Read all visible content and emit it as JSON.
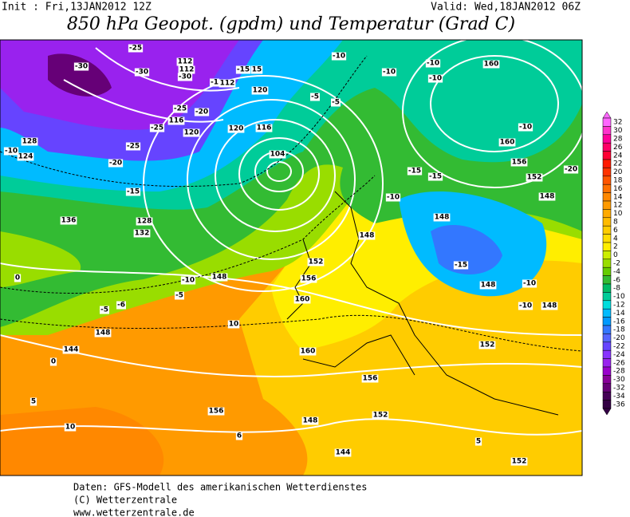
{
  "header": {
    "init": "Init : Fri,13JAN2012 12Z",
    "valid": "Valid: Wed,18JAN2012 06Z",
    "title": "850 hPa Geopot. (gpdm) und Temperatur (Grad C)"
  },
  "footer": {
    "line1": "Daten: GFS-Modell des amerikanischen Wetterdienstes",
    "line2": "(C) Wetterzentrale",
    "line3": "www.wetterzentrale.de"
  },
  "colorbar": {
    "labels": [
      32,
      30,
      28,
      26,
      24,
      22,
      20,
      18,
      16,
      14,
      12,
      10,
      8,
      6,
      4,
      2,
      0,
      -2,
      -4,
      -6,
      -8,
      -10,
      -12,
      -14,
      -16,
      -18,
      -20,
      -22,
      -24,
      -26,
      -28,
      -30,
      -32,
      -34,
      -36
    ],
    "colors": [
      "#ff66ff",
      "#ff33cc",
      "#ff0099",
      "#ff0066",
      "#ff0033",
      "#ff1a00",
      "#ff3300",
      "#ff5500",
      "#ff7000",
      "#ff8800",
      "#ff9a00",
      "#ffaa00",
      "#ffbb00",
      "#ffcc00",
      "#ffdd00",
      "#ffee00",
      "#ccee00",
      "#99dd00",
      "#66cc00",
      "#33bb33",
      "#00bb66",
      "#00cc99",
      "#00dddd",
      "#00bbff",
      "#0099ff",
      "#3377ff",
      "#5566ff",
      "#6644ff",
      "#8833ff",
      "#9922ee",
      "#9900cc",
      "#880099",
      "#660077",
      "#440055",
      "#330044"
    ]
  },
  "map_labels": [
    "-30",
    "-25",
    "-30",
    "112",
    "112",
    "-30",
    "-1",
    "112",
    "-15",
    "15",
    "120",
    "-10",
    "-10",
    "-10",
    "-10",
    "160",
    "-25",
    "-25",
    "116",
    "-20",
    "-5",
    "-5",
    "120",
    "120",
    "116",
    "128",
    "-10",
    "124",
    "-25",
    "-20",
    "104",
    "-10",
    "160",
    "156",
    "-15",
    "-15",
    "152",
    "148",
    "-20",
    "-15",
    "136",
    "128",
    "132",
    "-10",
    "148",
    "148",
    "152",
    "156",
    "160",
    "-10",
    "148",
    "-5",
    "-6",
    "-5",
    "10",
    "-15",
    "148",
    "-10",
    "-10",
    "148",
    "152",
    "148",
    "144",
    "0",
    "160",
    "156",
    "156",
    "6",
    "148",
    "152",
    "144",
    "152",
    "10",
    "5",
    "0",
    "5"
  ]
}
